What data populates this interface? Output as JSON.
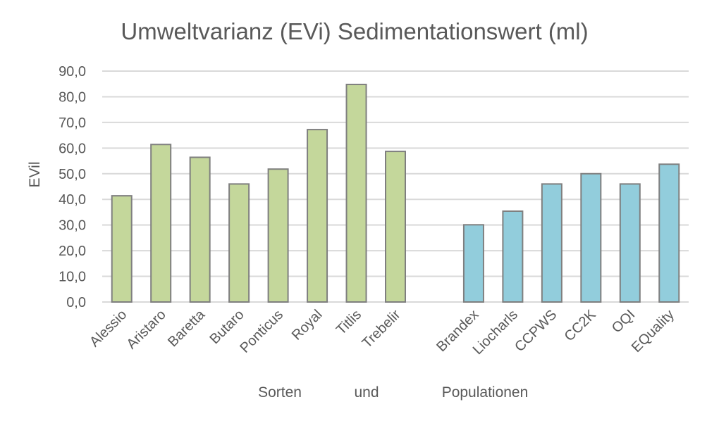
{
  "chart_data": {
    "type": "bar",
    "title": "Umweltvarianz (EVi) Sedimentationswert (ml)",
    "ylabel": "EVil",
    "xlabel_parts": [
      "Sorten",
      "und",
      "Populationen"
    ],
    "ylim": [
      0,
      90
    ],
    "yticks": [
      "0,0",
      "10,0",
      "20,0",
      "30,0",
      "40,0",
      "50,0",
      "60,0",
      "70,0",
      "80,0",
      "90,0"
    ],
    "grid": true,
    "categories": [
      "Alessio",
      "Aristaro",
      "Baretta",
      "Butaro",
      "Ponticus",
      "Royal",
      "Titlis",
      "Trebelir",
      "",
      "Brandex",
      "Liocharls",
      "CCPWS",
      "CC2K",
      "OQI",
      "EQuality"
    ],
    "values": [
      41.4,
      61.4,
      56.4,
      46.0,
      51.8,
      67.2,
      84.8,
      58.7,
      null,
      30.1,
      35.4,
      46.0,
      50.0,
      46.0,
      53.7
    ],
    "colors": {
      "Sorten": "#c4d79b",
      "Populationen": "#92cddc",
      "border": "#7f7f7f",
      "grid": "#d9d9d9"
    },
    "groups": [
      "Sorten",
      "Sorten",
      "Sorten",
      "Sorten",
      "Sorten",
      "Sorten",
      "Sorten",
      "Sorten",
      "",
      "Populationen",
      "Populationen",
      "Populationen",
      "Populationen",
      "Populationen",
      "Populationen"
    ]
  }
}
